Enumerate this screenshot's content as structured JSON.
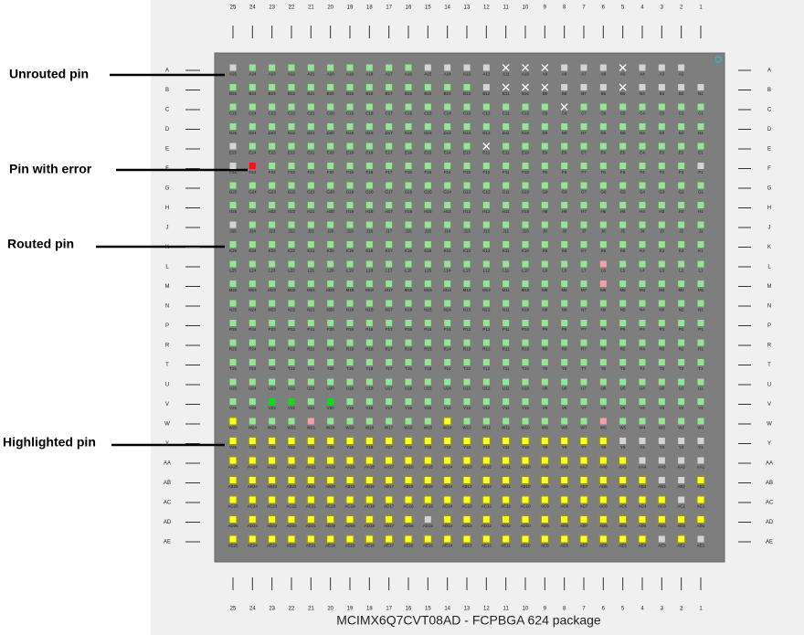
{
  "annotations": {
    "unrouted": "Unrouted pin",
    "error": "Pin with error",
    "routed": "Routed pin",
    "highlighted": "Highlighted pin"
  },
  "caption": "MCIMX6Q7CVT08AD - FCPBGA 624 package",
  "columns": [
    "25",
    "24",
    "23",
    "22",
    "21",
    "20",
    "19",
    "18",
    "17",
    "16",
    "15",
    "14",
    "13",
    "12",
    "11",
    "10",
    "9",
    "8",
    "7",
    "6",
    "5",
    "4",
    "3",
    "2",
    "1"
  ],
  "state_colors": {
    "u": "#d4d4d4",
    "g": "#92e892",
    "b": "#10dd10",
    "e": "#ff1010",
    "h": "#ffff20",
    "p": "#f2a2a2",
    "x": "none"
  },
  "rows": [
    {
      "name": "A",
      "states": "uggggggggguuuuxxxuuuxuuu-",
      "pins": [
        "A25",
        "A24",
        "A23",
        "A22",
        "A21",
        "A20",
        "A19",
        "A18",
        "A17",
        "A16",
        "A15",
        "A14",
        "A13",
        "A12",
        "A11",
        "A10",
        "A9",
        "A8",
        "A7",
        "A6",
        "A5",
        "A4",
        "A3",
        "A2",
        null
      ]
    },
    {
      "name": "B",
      "states": "ggggggggggggguxxxuuuxuuuu",
      "pins": [
        "B25",
        "B24",
        "B23",
        "B22",
        "B21",
        "B20",
        "B19",
        "B18",
        "B17",
        "B16",
        "B15",
        "B14",
        "B13",
        "B12",
        "B11",
        "B10",
        "B9",
        "B8",
        "B7",
        "B6",
        "B5",
        "B4",
        "B3",
        "B2",
        "B1"
      ]
    },
    {
      "name": "C",
      "states": "gggggggggggggggggxggggggg",
      "pins": [
        "C25",
        "C24",
        "C23",
        "C22",
        "C21",
        "C20",
        "C19",
        "C18",
        "C17",
        "C16",
        "C15",
        "C14",
        "C13",
        "C12",
        "C11",
        "C10",
        "C9",
        "C8",
        "C7",
        "C6",
        "C5",
        "C4",
        "C3",
        "C2",
        "C1"
      ]
    },
    {
      "name": "D",
      "states": "ggggggggggggggggggggggggg",
      "pins": [
        "D25",
        "D24",
        "D23",
        "D22",
        "D21",
        "D20",
        "D19",
        "D18",
        "D17",
        "D16",
        "D15",
        "D14",
        "D13",
        "D12",
        "D11",
        "D10",
        "D9",
        "D8",
        "D7",
        "D6",
        "D5",
        "D4",
        "D3",
        "D2",
        "D1"
      ]
    },
    {
      "name": "E",
      "states": "uggggggggggggxggggggggggg",
      "pins": [
        "E25",
        "E24",
        "E23",
        "E22",
        "E21",
        "E20",
        "E19",
        "E18",
        "E17",
        "E16",
        "E15",
        "E14",
        "E13",
        "E12",
        "E11",
        "E10",
        "E9",
        "E8",
        "E7",
        "E6",
        "E5",
        "E4",
        "E3",
        "E2",
        "E1"
      ]
    },
    {
      "name": "F",
      "states": "ueggggggggggggggggggggggu",
      "pins": [
        "F25",
        "F24",
        "F23",
        "F22",
        "F21",
        "F20",
        "F19",
        "F18",
        "F17",
        "F16",
        "F15",
        "F14",
        "F13",
        "F12",
        "F11",
        "F10",
        "F9",
        "F8",
        "F7",
        "F6",
        "F5",
        "F4",
        "F3",
        "F2",
        "F1"
      ]
    },
    {
      "name": "G",
      "states": "ggggggggggggggggggggggggg",
      "pins": [
        "G25",
        "G24",
        "G23",
        "G22",
        "G21",
        "G20",
        "G19",
        "G18",
        "G17",
        "G16",
        "G15",
        "G14",
        "G13",
        "G12",
        "G11",
        "G10",
        "G9",
        "G8",
        "G7",
        "G6",
        "G5",
        "G4",
        "G3",
        "G2",
        "G1"
      ]
    },
    {
      "name": "H",
      "states": "ggggggggggggggggggggggggg",
      "pins": [
        "H25",
        "H24",
        "H23",
        "H22",
        "H21",
        "H20",
        "H19",
        "H18",
        "H17",
        "H16",
        "H15",
        "H14",
        "H13",
        "H12",
        "H11",
        "H10",
        "H9",
        "H8",
        "H7",
        "H6",
        "H5",
        "H4",
        "H3",
        "H2",
        "H1"
      ]
    },
    {
      "name": "J",
      "states": "ugggggggggggggggggggggggg",
      "pins": [
        "J25",
        "J24",
        "J23",
        "J22",
        "J21",
        "J20",
        "J19",
        "J18",
        "J17",
        "J16",
        "J15",
        "J14",
        "J13",
        "J12",
        "J11",
        "J10",
        "J9",
        "J8",
        "J7",
        "J6",
        "J5",
        "J4",
        "J3",
        "J2",
        "J1"
      ]
    },
    {
      "name": "K",
      "states": "ggggggggggggggggggggggggg",
      "pins": [
        "K25",
        "K24",
        "K23",
        "K22",
        "K21",
        "K20",
        "K19",
        "K18",
        "K17",
        "K16",
        "K15",
        "K14",
        "K13",
        "K12",
        "K11",
        "K10",
        "K9",
        "K8",
        "K7",
        "K6",
        "K5",
        "K4",
        "K3",
        "K2",
        "K1"
      ]
    },
    {
      "name": "L",
      "states": "gggggggggggggggggggpggggg",
      "pins": [
        "L25",
        "L24",
        "L23",
        "L22",
        "L21",
        "L20",
        "L19",
        "L18",
        "L17",
        "L16",
        "L15",
        "L14",
        "L13",
        "L12",
        "L11",
        "L10",
        "L9",
        "L8",
        "L7",
        "L6",
        "L5",
        "L4",
        "L3",
        "L2",
        "L1"
      ]
    },
    {
      "name": "M",
      "states": "gggggggggggggggggggpggggg",
      "pins": [
        "M25",
        "M24",
        "M23",
        "M22",
        "M21",
        "M20",
        "M19",
        "M18",
        "M17",
        "M16",
        "M15",
        "M14",
        "M13",
        "M12",
        "M11",
        "M10",
        "M9",
        "M8",
        "M7",
        "M6",
        "M5",
        "M4",
        "M3",
        "M2",
        "M1"
      ]
    },
    {
      "name": "N",
      "states": "ggggggggggggggggggggggggg",
      "pins": [
        "N25",
        "N24",
        "N23",
        "N22",
        "N21",
        "N20",
        "N19",
        "N18",
        "N17",
        "N16",
        "N15",
        "N14",
        "N13",
        "N12",
        "N11",
        "N10",
        "N9",
        "N8",
        "N7",
        "N6",
        "N5",
        "N4",
        "N3",
        "N2",
        "N1"
      ]
    },
    {
      "name": "P",
      "states": "ggggggggggggggggggggggggg",
      "pins": [
        "P25",
        "P24",
        "P23",
        "P22",
        "P21",
        "P20",
        "P19",
        "P18",
        "P17",
        "P16",
        "P15",
        "P14",
        "P13",
        "P12",
        "P11",
        "P10",
        "P9",
        "P8",
        "P7",
        "P6",
        "P5",
        "P4",
        "P3",
        "P2",
        "P1"
      ]
    },
    {
      "name": "R",
      "states": "ggggggggggggggggggggggggg",
      "pins": [
        "R25",
        "R24",
        "R23",
        "R22",
        "R21",
        "R20",
        "R19",
        "R18",
        "R17",
        "R16",
        "R15",
        "R14",
        "R13",
        "R12",
        "R11",
        "R10",
        "R9",
        "R8",
        "R7",
        "R6",
        "R5",
        "R4",
        "R3",
        "R2",
        "R1"
      ]
    },
    {
      "name": "T",
      "states": "ggggggggggggggggggggggggg",
      "pins": [
        "T25",
        "T24",
        "T23",
        "T22",
        "T21",
        "T20",
        "T19",
        "T18",
        "T17",
        "T16",
        "T15",
        "T14",
        "T13",
        "T12",
        "T11",
        "T10",
        "T9",
        "T8",
        "T7",
        "T6",
        "T5",
        "T4",
        "T3",
        "T2",
        "T1"
      ]
    },
    {
      "name": "U",
      "states": "ggggggggggggggggggggggggg",
      "pins": [
        "U25",
        "U24",
        "U23",
        "U22",
        "U21",
        "U20",
        "U19",
        "U18",
        "U17",
        "U16",
        "U15",
        "U14",
        "U13",
        "U12",
        "U11",
        "U10",
        "U9",
        "U8",
        "U7",
        "U6",
        "U5",
        "U4",
        "U3",
        "U2",
        "U1"
      ]
    },
    {
      "name": "V",
      "states": "ggbbgbggggggggggggggggggg",
      "pins": [
        "V25",
        "V24",
        "V23",
        "V22",
        "V21",
        "V20",
        "V19",
        "V18",
        "V17",
        "V16",
        "V15",
        "V14",
        "V13",
        "V12",
        "V11",
        "V10",
        "V9",
        "V8",
        "V7",
        "V6",
        "V5",
        "V4",
        "V3",
        "V2",
        "V1"
      ]
    },
    {
      "name": "W",
      "states": "hgggpgggggghgggggggpggggg",
      "pins": [
        "W25",
        "W24",
        "W23",
        "W22",
        "W21",
        "W20",
        "W19",
        "W18",
        "W17",
        "W16",
        "W15",
        "W14",
        "W13",
        "W12",
        "W11",
        "W10",
        "W9",
        "W8",
        "W7",
        "W6",
        "W5",
        "W4",
        "W3",
        "W2",
        "W1"
      ]
    },
    {
      "name": "Y",
      "states": "hhhhhhhhhhhhhhhhhhhhuuuuu",
      "pins": [
        "Y25",
        "Y24",
        "Y23",
        "Y22",
        "Y21",
        "Y20",
        "Y19",
        "Y18",
        "Y17",
        "Y16",
        "Y15",
        "Y14",
        "Y13",
        "Y12",
        "Y11",
        "Y10",
        "Y9",
        "Y8",
        "Y7",
        "Y6",
        "Y5",
        "Y4",
        "Y3",
        "Y2",
        "Y1"
      ]
    },
    {
      "name": "AA",
      "states": "hhhhhhhhhhhhhhhhhhhhhuuuu",
      "pins": [
        "AA25",
        "AA24",
        "AA23",
        "AA22",
        "AA21",
        "AA20",
        "AA19",
        "AA18",
        "AA17",
        "AA16",
        "AA15",
        "AA14",
        "AA13",
        "AA12",
        "AA11",
        "AA10",
        "AA9",
        "AA8",
        "AA7",
        "AA6",
        "AA5",
        "AA4",
        "AA3",
        "AA2",
        "AA1"
      ]
    },
    {
      "name": "AB",
      "states": "hhhhhhhhhhhhhhhhhhhhhhuuh",
      "pins": [
        "AB25",
        "AB24",
        "AB23",
        "AB22",
        "AB21",
        "AB20",
        "AB19",
        "AB18",
        "AB17",
        "AB16",
        "AB15",
        "AB14",
        "AB13",
        "AB12",
        "AB11",
        "AB10",
        "AB9",
        "AB8",
        "AB7",
        "AB6",
        "AB5",
        "AB4",
        "AB3",
        "AB2",
        "AB1"
      ]
    },
    {
      "name": "AC",
      "states": "hhhhhhhhhhhhhhhhhhhhhhhuh",
      "pins": [
        "AC25",
        "AC24",
        "AC23",
        "AC22",
        "AC21",
        "AC20",
        "AC19",
        "AC18",
        "AC17",
        "AC16",
        "AC15",
        "AC14",
        "AC13",
        "AC12",
        "AC11",
        "AC10",
        "AC9",
        "AC8",
        "AC7",
        "AC6",
        "AC5",
        "AC4",
        "AC3",
        "AC2",
        "AC1"
      ]
    },
    {
      "name": "AD",
      "states": "hhhhhhhhhhuhhhhhhhhhhhhhh",
      "pins": [
        "AD25",
        "AD24",
        "AD23",
        "AD22",
        "AD21",
        "AD20",
        "AD19",
        "AD18",
        "AD17",
        "AD16",
        "AD15",
        "AD14",
        "AD13",
        "AD12",
        "AD11",
        "AD10",
        "AD9",
        "AD8",
        "AD7",
        "AD6",
        "AD5",
        "AD4",
        "AD3",
        "AD2",
        "AD1"
      ]
    },
    {
      "name": "AE",
      "states": "hhhhhhhhhhhhhhhhhhhhhhuhu",
      "pins": [
        "AE25",
        "AE24",
        "AE23",
        "AE22",
        "AE21",
        "AE20",
        "AE19",
        "AE18",
        "AE17",
        "AE16",
        "AE15",
        "AE14",
        "AE13",
        "AE12",
        "AE11",
        "AE10",
        "AE9",
        "AE8",
        "AE7",
        "AE6",
        "AE5",
        "AE4",
        "AE3",
        "AE2",
        "AE1"
      ]
    }
  ]
}
